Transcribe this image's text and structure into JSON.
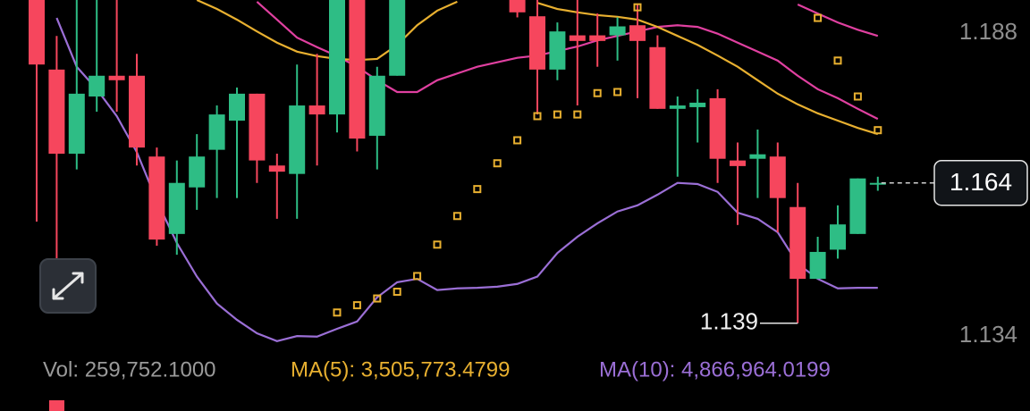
{
  "chart_data": {
    "type": "candlestick",
    "categories": [
      null,
      null,
      null,
      null,
      null,
      null,
      null,
      null,
      null,
      null,
      null,
      null,
      null,
      null,
      null,
      null,
      null,
      null,
      null,
      null,
      null,
      null,
      null,
      null,
      null,
      null,
      null,
      null,
      null,
      null,
      null,
      null,
      null,
      null,
      null,
      null,
      null,
      null,
      null,
      null,
      null,
      null,
      null
    ],
    "open": [
      1.1982,
      1.1842,
      1.1692,
      1.1794,
      1.1831,
      1.1831,
      1.1687,
      1.1549,
      1.1632,
      1.1699,
      1.1751,
      1.1799,
      1.1671,
      1.1656,
      1.1778,
      1.1762,
      1.1966,
      1.1724,
      1.1831,
      null,
      null,
      null,
      null,
      null,
      1.1966,
      1.1937,
      1.1842,
      1.1903,
      1.1903,
      1.1903,
      1.1921,
      1.1882,
      1.1772,
      1.1775,
      1.1791,
      1.168,
      1.1683,
      1.1687,
      1.1597,
      1.1469,
      1.1521,
      1.1549,
      1.164
    ],
    "high": [
      1.1998,
      1.1902,
      1.1966,
      1.1966,
      1.1966,
      1.187,
      1.1703,
      1.168,
      1.1727,
      1.1778,
      1.181,
      1.1799,
      1.1692,
      1.1851,
      1.187,
      1.1998,
      1.1998,
      1.1847,
      1.1998,
      null,
      null,
      null,
      null,
      null,
      1.1998,
      1.1966,
      1.1926,
      1.1966,
      1.1942,
      1.1935,
      1.1958,
      1.1903,
      1.1794,
      1.1807,
      1.1807,
      1.1712,
      1.1735,
      1.1712,
      1.164,
      1.1544,
      1.16,
      1.1648,
      1.1651
    ],
    "low": [
      1.1571,
      1.1425,
      1.1664,
      1.1767,
      1.1767,
      1.1671,
      1.1528,
      1.1512,
      1.1592,
      1.1613,
      1.1613,
      1.164,
      1.1576,
      1.1576,
      1.1671,
      1.173,
      1.1696,
      1.1664,
      1.1831,
      null,
      null,
      null,
      null,
      null,
      1.1935,
      1.1762,
      1.1823,
      1.1778,
      1.1847,
      1.1858,
      1.1791,
      1.1772,
      1.1651,
      1.1712,
      1.164,
      1.1565,
      1.1613,
      1.1552,
      1.139,
      1.1469,
      1.1505,
      1.1549,
      1.1626
    ],
    "close": [
      1.1851,
      1.1692,
      1.1799,
      1.1831,
      1.1823,
      1.1703,
      1.1539,
      1.164,
      1.1687,
      1.1762,
      1.1799,
      1.168,
      1.166,
      1.1778,
      1.1762,
      1.1966,
      1.1719,
      1.1831,
      1.1966,
      null,
      null,
      null,
      null,
      null,
      1.1944,
      1.1842,
      1.191,
      1.1893,
      1.1893,
      1.1919,
      1.1893,
      1.1772,
      1.1778,
      1.1783,
      1.1683,
      1.167,
      1.1691,
      1.1613,
      1.1469,
      1.1517,
      1.1566,
      1.1648,
      1.164
    ],
    "up_color": "#2ebd85",
    "down_color": "#f6465d",
    "overlays": [
      {
        "color": "#9b6fd6",
        "values": [
          null,
          1.1934,
          1.1847,
          1.1807,
          1.1759,
          1.1695,
          1.1608,
          1.1533,
          1.1473,
          1.1425,
          1.1396,
          1.1372,
          1.1358,
          1.1367,
          1.1366,
          1.138,
          1.1393,
          1.1436,
          1.1463,
          1.1469,
          1.1449,
          1.1452,
          1.1453,
          1.1455,
          1.146,
          1.1473,
          1.1515,
          1.1544,
          1.1568,
          1.1589,
          1.16,
          1.1619,
          1.164,
          1.1638,
          1.1624,
          1.1587,
          1.1576,
          1.1552,
          1.1496,
          1.1469,
          1.1452,
          1.1453,
          1.1453
        ]
      },
      {
        "color": "#e040a0",
        "values": [
          null,
          null,
          null,
          null,
          null,
          null,
          null,
          null,
          null,
          null,
          null,
          1.1963,
          1.1931,
          1.1899,
          1.1882,
          1.1866,
          1.1847,
          1.1823,
          1.1802,
          1.1802,
          1.1823,
          1.1835,
          1.1847,
          1.1855,
          1.1863,
          1.1867,
          1.1875,
          1.1883,
          1.1894,
          1.1902,
          1.191,
          1.1918,
          1.1921,
          1.1918,
          1.1906,
          1.189,
          1.1874,
          1.1858,
          1.1831,
          1.1807,
          1.1791,
          1.1772,
          1.1754
        ]
      },
      {
        "color": "#e8b030",
        "values": [
          null,
          null,
          null,
          null,
          null,
          null,
          null,
          null,
          1.1966,
          1.195,
          1.1931,
          1.191,
          1.189,
          1.1874,
          1.1866,
          1.1861,
          1.1859,
          1.1861,
          1.1886,
          1.1921,
          1.1947,
          1.1963,
          null,
          null,
          null,
          1.1961,
          1.195,
          1.1944,
          1.1939,
          1.1936,
          1.1931,
          1.1918,
          1.1902,
          1.1886,
          1.1867,
          1.1847,
          1.1823,
          1.1799,
          1.178,
          1.1764,
          1.1751,
          1.1738,
          1.1727
        ]
      },
      {
        "color": "#e040a0",
        "values": [
          null,
          null,
          null,
          null,
          null,
          null,
          null,
          null,
          null,
          null,
          null,
          null,
          null,
          null,
          null,
          null,
          null,
          null,
          null,
          null,
          null,
          null,
          null,
          null,
          null,
          null,
          null,
          null,
          null,
          null,
          null,
          null,
          null,
          null,
          null,
          null,
          null,
          null,
          1.1958,
          1.1942,
          1.1926,
          1.1913,
          1.1902
        ]
      }
    ],
    "sar": {
      "color": "#e8b030",
      "values": [
        null,
        null,
        null,
        null,
        null,
        null,
        null,
        null,
        null,
        null,
        null,
        null,
        null,
        null,
        null,
        1.1409,
        1.1422,
        1.1434,
        1.1446,
        1.1474,
        1.153,
        1.1581,
        1.1629,
        1.1675,
        1.1716,
        1.1759,
        1.1762,
        1.1762,
        1.18,
        1.1802,
        1.1953,
        null,
        null,
        null,
        null,
        null,
        null,
        null,
        null,
        1.1934,
        1.1858,
        1.1794,
        1.1734
      ]
    },
    "ylim": [
      1.1329,
      1.1966
    ],
    "yticks": [
      1.188,
      1.134
    ],
    "volume_legend": [
      {
        "label": "Vol: 259,752.1000",
        "color": "#9a9a9a"
      },
      {
        "label": "MA(5): 3,505,773.4799",
        "color": "#e8b030"
      },
      {
        "label": "MA(10): 4,866,964.0199",
        "color": "#9b6fd6"
      }
    ]
  }
}
